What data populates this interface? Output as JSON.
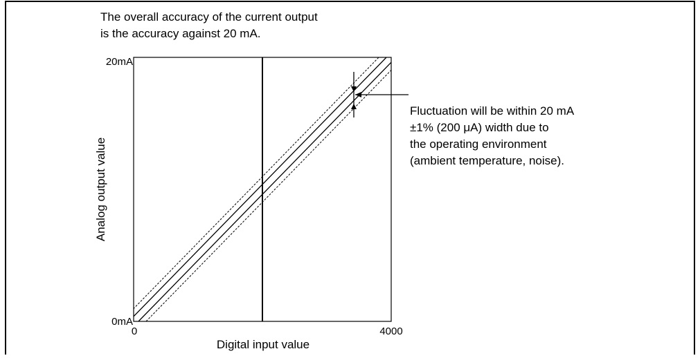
{
  "title": {
    "lines": [
      "The overall accuracy of the current output",
      "is the accuracy against 20 mA."
    ]
  },
  "axes": {
    "y_label": "Analog output value",
    "x_label": "Digital input value",
    "y_top": "20mA",
    "y_bottom": "0mA",
    "x_left": "0",
    "x_right": "4000"
  },
  "annotation": {
    "lines": [
      "Fluctuation will be within 20 mA",
      "±1% (200 μA) width due to",
      "the operating environment",
      "(ambient temperature, noise)."
    ]
  }
}
